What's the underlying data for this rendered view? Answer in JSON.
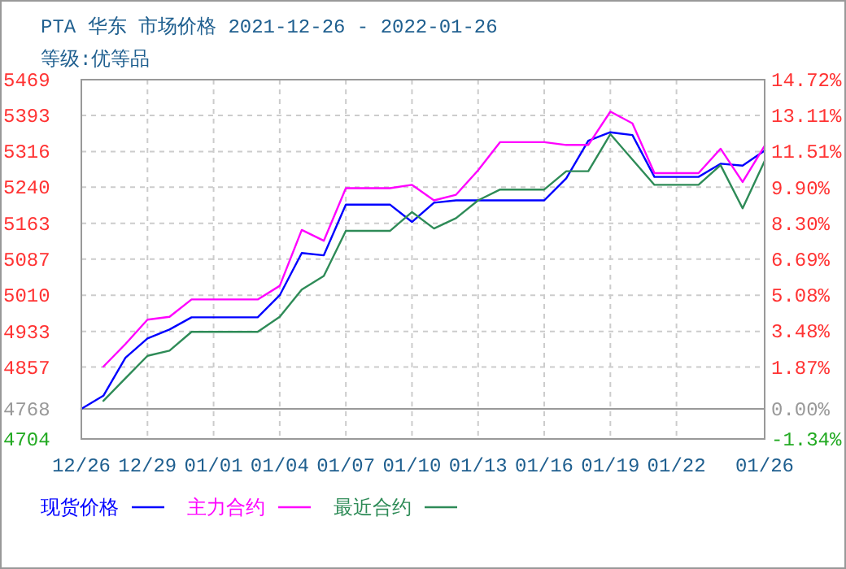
{
  "chart_data": {
    "type": "line",
    "title": "PTA 华东 市场价格 2021-12-26 - 2022-01-26",
    "subtitle": "等级:优等品",
    "x": [
      "2021-12-26",
      "2021-12-27",
      "2021-12-28",
      "2021-12-29",
      "2021-12-30",
      "2021-12-31",
      "2022-01-01",
      "2022-01-02",
      "2022-01-03",
      "2022-01-04",
      "2022-01-05",
      "2022-01-06",
      "2022-01-07",
      "2022-01-08",
      "2022-01-09",
      "2022-01-10",
      "2022-01-11",
      "2022-01-12",
      "2022-01-13",
      "2022-01-14",
      "2022-01-15",
      "2022-01-16",
      "2022-01-17",
      "2022-01-18",
      "2022-01-19",
      "2022-01-20",
      "2022-01-21",
      "2022-01-22",
      "2022-01-23",
      "2022-01-24",
      "2022-01-25",
      "2022-01-26"
    ],
    "series": [
      {
        "name": "现货价格",
        "color": "#0000ff",
        "values": [
          4768,
          4796,
          4877,
          4918,
          4937,
          4963,
          4963,
          4963,
          4963,
          5010,
          5100,
          5095,
          5203,
          5203,
          5203,
          5166,
          5207,
          5212,
          5212,
          5212,
          5212,
          5212,
          5259,
          5339,
          5357,
          5351,
          5262,
          5262,
          5262,
          5290,
          5286,
          5318
        ]
      },
      {
        "name": "主力合约",
        "color": "#ff00ff",
        "values": [
          null,
          4858,
          4906,
          4958,
          4964,
          5001,
          5001,
          5001,
          5001,
          5030,
          5149,
          5126,
          5238,
          5238,
          5238,
          5245,
          5212,
          5224,
          5276,
          5336,
          5336,
          5336,
          5330,
          5330,
          5401,
          5376,
          5270,
          5270,
          5270,
          5322,
          5251,
          5328
        ]
      },
      {
        "name": "最近合约",
        "color": "#2e8b57",
        "values": [
          null,
          4785,
          4833,
          4881,
          4892,
          4932,
          4932,
          4932,
          4932,
          4964,
          5022,
          5051,
          5147,
          5147,
          5147,
          5187,
          5152,
          5174,
          5212,
          5235,
          5235,
          5235,
          5274,
          5274,
          5353,
          5299,
          5245,
          5245,
          5245,
          5287,
          5195,
          5296
        ]
      }
    ],
    "xlim": [
      "2021-12-26",
      "2022-01-26"
    ],
    "xticks": [
      {
        "value": "2021-12-26",
        "label": "12/26"
      },
      {
        "value": "2021-12-29",
        "label": "12/29"
      },
      {
        "value": "2022-01-01",
        "label": "01/01"
      },
      {
        "value": "2022-01-04",
        "label": "01/04"
      },
      {
        "value": "2022-01-07",
        "label": "01/07"
      },
      {
        "value": "2022-01-10",
        "label": "01/10"
      },
      {
        "value": "2022-01-13",
        "label": "01/13"
      },
      {
        "value": "2022-01-16",
        "label": "01/16"
      },
      {
        "value": "2022-01-19",
        "label": "01/19"
      },
      {
        "value": "2022-01-22",
        "label": "01/22"
      },
      {
        "value": "2022-01-26",
        "label": "01/26"
      }
    ],
    "ylim": [
      4704,
      5469
    ],
    "yticks": [
      4704,
      4768,
      4857,
      4933,
      5010,
      5087,
      5163,
      5240,
      5316,
      5393,
      5469
    ],
    "y2lim": [
      -1.34,
      14.72
    ],
    "y2ticks": [
      {
        "value": -1.34,
        "label": "-1.34%"
      },
      {
        "value": 0,
        "label": "0.00%"
      },
      {
        "value": 1.87,
        "label": "1.87%"
      },
      {
        "value": 3.48,
        "label": "3.48%"
      },
      {
        "value": 5.08,
        "label": "5.08%"
      },
      {
        "value": 6.69,
        "label": "6.69%"
      },
      {
        "value": 8.3,
        "label": "8.30%"
      },
      {
        "value": 9.9,
        "label": "9.90%"
      },
      {
        "value": 11.51,
        "label": "11.51%"
      },
      {
        "value": 13.11,
        "label": "13.11%"
      },
      {
        "value": 14.72,
        "label": "14.72%"
      }
    ],
    "ref_lines": [
      {
        "axis": "y",
        "value": 4768,
        "color": "#999999",
        "line_style": "solid"
      }
    ],
    "grid": true,
    "legend": "bottom",
    "line_style": "solid",
    "marker": "none"
  }
}
